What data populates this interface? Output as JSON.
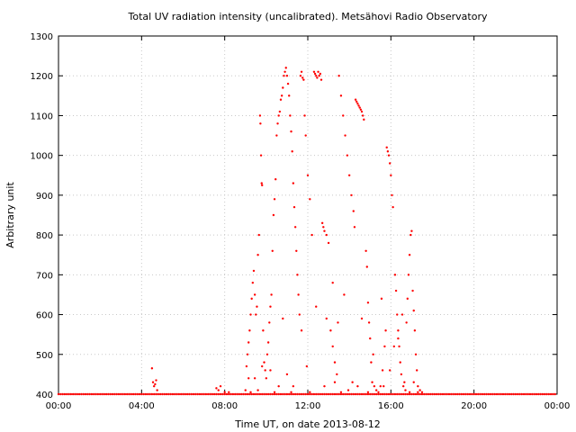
{
  "chart_data": {
    "type": "scatter",
    "title": "Total UV radiation intensity (uncalibrated). Metsähovi Radio Observatory",
    "xlabel": "Time UT, on date 2013-08-12",
    "ylabel": "Arbitrary unit",
    "xlim": [
      0,
      24
    ],
    "ylim": [
      400,
      1300
    ],
    "x_ticks": [
      0,
      4,
      8,
      12,
      16,
      20,
      24
    ],
    "x_tick_labels": [
      "00:00",
      "04:00",
      "08:00",
      "12:00",
      "16:00",
      "20:00",
      "00:00"
    ],
    "y_ticks": [
      400,
      500,
      600,
      700,
      800,
      900,
      1000,
      1100,
      1200,
      1300
    ],
    "y_tick_labels": [
      "400",
      "500",
      "600",
      "700",
      "800",
      "900",
      "1000",
      "1100",
      "1200",
      "1300"
    ],
    "grid": true,
    "marker_color": "#ff0000",
    "series": [
      {
        "values": [
          [
            4.5,
            465
          ],
          [
            4.55,
            430
          ],
          [
            4.6,
            420
          ],
          [
            4.65,
            425
          ],
          [
            4.7,
            435
          ],
          [
            4.75,
            410
          ],
          [
            7.6,
            415
          ],
          [
            7.7,
            410
          ],
          [
            7.8,
            420
          ],
          [
            8.0,
            405
          ],
          [
            8.2,
            405
          ],
          [
            9.0,
            410
          ],
          [
            9.05,
            470
          ],
          [
            9.1,
            500
          ],
          [
            9.15,
            530
          ],
          [
            9.2,
            560
          ],
          [
            9.25,
            600
          ],
          [
            9.3,
            640
          ],
          [
            9.35,
            680
          ],
          [
            9.4,
            710
          ],
          [
            9.45,
            650
          ],
          [
            9.5,
            600
          ],
          [
            9.55,
            620
          ],
          [
            9.6,
            750
          ],
          [
            9.65,
            800
          ],
          [
            9.7,
            1100
          ],
          [
            9.72,
            1080
          ],
          [
            9.75,
            1000
          ],
          [
            9.78,
            930
          ],
          [
            9.8,
            925
          ],
          [
            9.85,
            560
          ],
          [
            9.9,
            480
          ],
          [
            9.95,
            460
          ],
          [
            10.0,
            440
          ],
          [
            10.05,
            500
          ],
          [
            10.1,
            530
          ],
          [
            10.15,
            580
          ],
          [
            10.2,
            620
          ],
          [
            10.25,
            650
          ],
          [
            10.3,
            760
          ],
          [
            10.35,
            850
          ],
          [
            10.4,
            890
          ],
          [
            10.45,
            940
          ],
          [
            10.5,
            1050
          ],
          [
            10.55,
            1080
          ],
          [
            10.6,
            1100
          ],
          [
            10.65,
            1110
          ],
          [
            10.7,
            1140
          ],
          [
            10.75,
            1150
          ],
          [
            10.8,
            1170
          ],
          [
            10.85,
            1200
          ],
          [
            10.9,
            1210
          ],
          [
            10.95,
            1220
          ],
          [
            11.0,
            1200
          ],
          [
            11.05,
            1180
          ],
          [
            11.1,
            1150
          ],
          [
            11.15,
            1100
          ],
          [
            11.2,
            1060
          ],
          [
            11.25,
            1010
          ],
          [
            11.3,
            930
          ],
          [
            11.35,
            870
          ],
          [
            11.4,
            820
          ],
          [
            11.45,
            760
          ],
          [
            11.5,
            700
          ],
          [
            11.55,
            650
          ],
          [
            11.6,
            600
          ],
          [
            11.65,
            1200
          ],
          [
            11.7,
            1210
          ],
          [
            11.75,
            1195
          ],
          [
            11.8,
            1190
          ],
          [
            11.85,
            1100
          ],
          [
            11.9,
            1050
          ],
          [
            12.0,
            950
          ],
          [
            12.1,
            890
          ],
          [
            12.2,
            800
          ],
          [
            12.3,
            1210
          ],
          [
            12.35,
            1205
          ],
          [
            12.4,
            1200
          ],
          [
            12.45,
            1195
          ],
          [
            12.5,
            1210
          ],
          [
            12.55,
            1200
          ],
          [
            12.6,
            1205
          ],
          [
            12.65,
            1190
          ],
          [
            12.7,
            830
          ],
          [
            12.75,
            820
          ],
          [
            12.8,
            810
          ],
          [
            12.9,
            800
          ],
          [
            13.0,
            780
          ],
          [
            13.1,
            560
          ],
          [
            13.2,
            520
          ],
          [
            13.3,
            480
          ],
          [
            13.4,
            450
          ],
          [
            13.5,
            1200
          ],
          [
            13.6,
            1150
          ],
          [
            13.7,
            1100
          ],
          [
            13.8,
            1050
          ],
          [
            13.9,
            1000
          ],
          [
            14.0,
            950
          ],
          [
            14.1,
            900
          ],
          [
            14.2,
            860
          ],
          [
            14.25,
            820
          ],
          [
            14.3,
            1140
          ],
          [
            14.35,
            1135
          ],
          [
            14.4,
            1130
          ],
          [
            14.45,
            1125
          ],
          [
            14.5,
            1120
          ],
          [
            14.55,
            1115
          ],
          [
            14.6,
            1110
          ],
          [
            14.65,
            1100
          ],
          [
            14.7,
            1090
          ],
          [
            14.8,
            760
          ],
          [
            14.85,
            720
          ],
          [
            14.9,
            630
          ],
          [
            14.95,
            580
          ],
          [
            15.0,
            540
          ],
          [
            15.05,
            480
          ],
          [
            15.1,
            430
          ],
          [
            15.2,
            420
          ],
          [
            15.3,
            410
          ],
          [
            15.4,
            405
          ],
          [
            15.5,
            420
          ],
          [
            15.6,
            460
          ],
          [
            15.7,
            520
          ],
          [
            15.75,
            560
          ],
          [
            15.8,
            1020
          ],
          [
            15.85,
            1010
          ],
          [
            15.9,
            1000
          ],
          [
            15.95,
            980
          ],
          [
            16.0,
            950
          ],
          [
            16.05,
            900
          ],
          [
            16.1,
            870
          ],
          [
            16.2,
            700
          ],
          [
            16.25,
            660
          ],
          [
            16.3,
            600
          ],
          [
            16.35,
            560
          ],
          [
            16.4,
            520
          ],
          [
            16.45,
            480
          ],
          [
            16.5,
            450
          ],
          [
            16.6,
            420
          ],
          [
            16.7,
            410
          ],
          [
            16.75,
            580
          ],
          [
            16.8,
            640
          ],
          [
            16.85,
            700
          ],
          [
            16.9,
            750
          ],
          [
            16.95,
            800
          ],
          [
            17.0,
            810
          ],
          [
            17.05,
            660
          ],
          [
            17.1,
            610
          ],
          [
            17.15,
            560
          ],
          [
            17.2,
            500
          ],
          [
            17.25,
            460
          ],
          [
            17.3,
            420
          ],
          [
            17.4,
            410
          ],
          [
            17.5,
            405
          ],
          [
            13.6,
            405
          ],
          [
            12.1,
            405
          ],
          [
            11.2,
            405
          ],
          [
            10.4,
            405
          ],
          [
            9.6,
            410
          ],
          [
            9.25,
            405
          ],
          [
            14.9,
            405
          ],
          [
            16.9,
            405
          ],
          [
            17.3,
            405
          ],
          [
            10.8,
            590
          ],
          [
            11.0,
            450
          ],
          [
            11.7,
            560
          ],
          [
            11.95,
            470
          ],
          [
            12.4,
            620
          ],
          [
            12.9,
            590
          ],
          [
            13.2,
            680
          ],
          [
            13.45,
            580
          ],
          [
            13.75,
            650
          ],
          [
            13.95,
            410
          ],
          [
            14.15,
            430
          ],
          [
            14.6,
            590
          ],
          [
            15.15,
            500
          ],
          [
            15.55,
            640
          ],
          [
            15.95,
            460
          ],
          [
            16.15,
            520
          ],
          [
            16.55,
            600
          ],
          [
            16.35,
            540
          ],
          [
            10.2,
            460
          ],
          [
            9.8,
            470
          ],
          [
            9.45,
            440
          ],
          [
            9.15,
            440
          ],
          [
            10.6,
            420
          ],
          [
            11.3,
            420
          ],
          [
            12.8,
            420
          ],
          [
            13.3,
            430
          ],
          [
            14.4,
            420
          ],
          [
            15.65,
            420
          ],
          [
            16.65,
            430
          ],
          [
            17.1,
            430
          ]
        ]
      }
    ]
  }
}
